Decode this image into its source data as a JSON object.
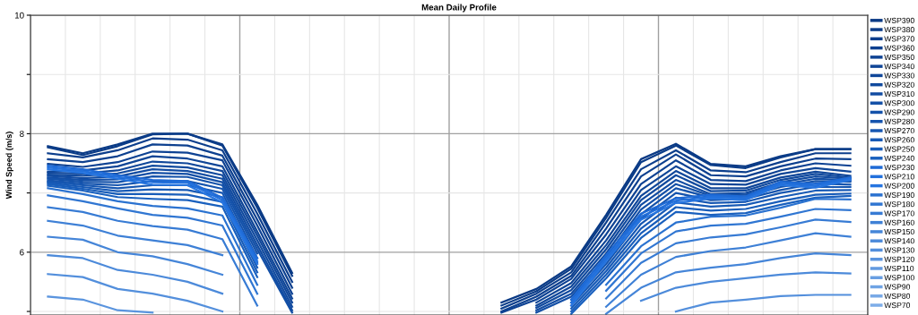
{
  "chart_data": {
    "type": "line",
    "title": "Mean Daily Profile",
    "ylabel": "Wind Speed (m/s)",
    "categories": [
      null,
      null,
      null,
      null,
      null,
      null,
      null,
      null,
      null,
      null,
      null,
      null,
      null,
      null,
      null,
      null,
      null,
      null,
      null,
      null,
      null,
      null,
      null,
      null
    ],
    "ylim": [
      4.94,
      10
    ],
    "yticks": [
      {
        "value": 5,
        "label": null
      },
      6,
      {
        "value": 7,
        "label": null
      },
      8,
      {
        "value": 9,
        "label": null
      },
      10
    ],
    "tick_labels": "y",
    "grid": true,
    "legend": "right",
    "marker": "none",
    "line_style": "solid",
    "series": [
      {
        "name": "WSP390",
        "color": "#0a3a85",
        "values": [
          7.79,
          7.67,
          7.82,
          8.0,
          8.0,
          7.82,
          6.8,
          5.65,
          null,
          null,
          null,
          null,
          null,
          5.15,
          5.38,
          5.76,
          6.63,
          7.57,
          7.83,
          7.49,
          7.45,
          7.62,
          7.74,
          7.74
        ]
      },
      {
        "name": "WSP380",
        "color": "#0b3c88",
        "values": [
          7.77,
          7.64,
          7.79,
          7.99,
          8.0,
          7.8,
          6.75,
          5.6,
          null,
          null,
          null,
          null,
          null,
          5.1,
          5.34,
          5.72,
          6.58,
          7.52,
          7.8,
          7.47,
          7.42,
          7.6,
          7.74,
          7.74
        ]
      },
      {
        "name": "WSP370",
        "color": "#0c3e8c",
        "values": [
          7.67,
          7.6,
          7.72,
          7.92,
          7.9,
          7.72,
          6.65,
          5.5,
          null,
          null,
          null,
          null,
          null,
          5.05,
          5.3,
          5.66,
          6.5,
          7.4,
          7.72,
          7.38,
          7.35,
          7.52,
          7.67,
          7.67
        ]
      },
      {
        "name": "WSP360",
        "color": "#0d408f",
        "values": [
          7.57,
          7.52,
          7.62,
          7.82,
          7.8,
          7.63,
          6.55,
          5.4,
          null,
          null,
          null,
          null,
          null,
          5.0,
          5.25,
          5.6,
          6.4,
          7.28,
          7.65,
          7.3,
          7.28,
          7.45,
          7.58,
          7.57
        ]
      },
      {
        "name": "WSP350",
        "color": "#0e4293",
        "values": [
          7.49,
          7.44,
          7.52,
          7.7,
          7.68,
          7.55,
          6.45,
          5.3,
          null,
          null,
          null,
          null,
          null,
          4.98,
          5.2,
          5.55,
          6.3,
          7.15,
          7.55,
          7.22,
          7.2,
          7.38,
          7.5,
          7.46
        ]
      },
      {
        "name": "WSP340",
        "color": "#0f4596",
        "values": [
          7.36,
          7.38,
          7.45,
          7.62,
          7.58,
          7.45,
          6.35,
          5.22,
          null,
          null,
          null,
          null,
          null,
          null,
          5.15,
          5.48,
          6.2,
          7.05,
          7.45,
          7.15,
          7.14,
          7.32,
          7.42,
          7.36
        ]
      },
      {
        "name": "WSP330",
        "color": "#10479a",
        "values": [
          7.34,
          7.33,
          7.38,
          7.53,
          7.5,
          7.37,
          6.28,
          5.15,
          null,
          null,
          null,
          null,
          null,
          null,
          5.1,
          5.42,
          6.12,
          6.95,
          7.37,
          7.08,
          7.08,
          7.26,
          7.36,
          7.29
        ]
      },
      {
        "name": "WSP320",
        "color": "#114a9e",
        "values": [
          7.31,
          7.29,
          7.33,
          7.46,
          7.43,
          7.3,
          6.2,
          5.08,
          null,
          null,
          null,
          null,
          null,
          null,
          5.06,
          5.36,
          6.05,
          6.88,
          7.3,
          7.03,
          7.04,
          7.22,
          7.32,
          7.26
        ]
      },
      {
        "name": "WSP310",
        "color": "#124ca2",
        "values": [
          7.29,
          7.25,
          7.28,
          7.4,
          7.37,
          7.24,
          6.12,
          5.02,
          null,
          null,
          null,
          null,
          null,
          null,
          5.02,
          5.3,
          5.98,
          6.8,
          7.22,
          6.98,
          7.0,
          7.18,
          7.28,
          7.24
        ]
      },
      {
        "name": "WSP300",
        "color": "#134fa6",
        "values": [
          7.26,
          7.22,
          7.23,
          7.34,
          7.32,
          7.18,
          6.05,
          4.98,
          null,
          null,
          null,
          null,
          null,
          null,
          4.98,
          5.25,
          5.92,
          6.72,
          7.15,
          6.95,
          6.97,
          7.14,
          7.24,
          7.21
        ]
      },
      {
        "name": "WSP290",
        "color": "#1452aa",
        "values": [
          7.24,
          7.19,
          7.18,
          7.28,
          7.27,
          7.13,
          5.98,
          null,
          null,
          null,
          null,
          null,
          null,
          null,
          null,
          5.2,
          5.86,
          6.64,
          7.08,
          6.92,
          6.94,
          7.1,
          7.2,
          7.19
        ]
      },
      {
        "name": "WSP280",
        "color": "#1554ae",
        "values": [
          7.21,
          7.16,
          7.13,
          7.2,
          7.2,
          7.07,
          5.9,
          null,
          null,
          null,
          null,
          null,
          null,
          null,
          null,
          5.15,
          5.8,
          6.56,
          7.0,
          6.88,
          6.9,
          7.05,
          7.16,
          7.14
        ]
      },
      {
        "name": "WSP270",
        "color": "#1657b2",
        "values": [
          7.19,
          7.13,
          7.08,
          7.13,
          7.13,
          7.0,
          5.82,
          null,
          null,
          null,
          null,
          null,
          null,
          null,
          null,
          5.1,
          5.74,
          6.48,
          6.92,
          6.83,
          6.85,
          7.0,
          7.1,
          7.1
        ]
      },
      {
        "name": "WSP260",
        "color": "#175ab6",
        "values": [
          7.17,
          7.1,
          7.03,
          7.06,
          7.05,
          6.93,
          5.74,
          null,
          null,
          null,
          null,
          null,
          null,
          null,
          null,
          5.05,
          5.68,
          6.4,
          6.84,
          6.77,
          6.8,
          6.93,
          7.04,
          7.05
        ]
      },
      {
        "name": "WSP250",
        "color": "#185dba",
        "values": [
          7.15,
          7.07,
          6.98,
          6.98,
          6.97,
          6.85,
          5.66,
          null,
          null,
          null,
          null,
          null,
          null,
          null,
          null,
          5.0,
          5.62,
          6.32,
          6.76,
          6.7,
          6.73,
          6.86,
          6.97,
          6.99
        ]
      },
      {
        "name": "WSP240",
        "color": "#1960be",
        "values": [
          7.12,
          7.04,
          6.93,
          6.9,
          6.88,
          6.77,
          5.58,
          null,
          null,
          null,
          null,
          null,
          null,
          null,
          null,
          4.96,
          5.56,
          6.24,
          6.68,
          6.63,
          6.66,
          6.8,
          6.92,
          6.95
        ]
      },
      {
        "name": "WSP230",
        "color": "#1e6ad6",
        "values": [
          7.46,
          7.4,
          7.3,
          7.22,
          7.2,
          6.92,
          5.9,
          null,
          null,
          null,
          null,
          null,
          null,
          null,
          null,
          5.2,
          5.95,
          6.65,
          6.91,
          6.97,
          6.94,
          7.19,
          7.15,
          7.26
        ]
      },
      {
        "name": "WSP210",
        "color": "#2270dc",
        "values": [
          7.43,
          7.37,
          7.27,
          7.18,
          7.17,
          6.88,
          5.85,
          null,
          null,
          null,
          null,
          null,
          null,
          null,
          null,
          5.15,
          5.9,
          6.6,
          6.87,
          6.94,
          6.91,
          7.16,
          7.12,
          7.24
        ]
      },
      {
        "name": "WSP200",
        "color": "#2675e0",
        "values": [
          7.4,
          7.34,
          7.24,
          7.14,
          7.13,
          6.84,
          5.8,
          null,
          null,
          null,
          null,
          null,
          null,
          null,
          null,
          5.1,
          5.85,
          6.55,
          6.83,
          6.91,
          6.88,
          7.13,
          7.09,
          7.22
        ]
      },
      {
        "name": "WSP190",
        "color": "#2a72d0",
        "values": [
          7.08,
          6.98,
          6.86,
          6.78,
          6.74,
          6.62,
          5.45,
          null,
          null,
          null,
          null,
          null,
          null,
          null,
          null,
          null,
          5.45,
          6.1,
          6.5,
          6.6,
          6.62,
          6.75,
          6.9,
          6.89
        ]
      },
      {
        "name": "WSP180",
        "color": "#3076d2",
        "values": [
          6.96,
          6.86,
          6.74,
          6.63,
          6.58,
          6.45,
          5.3,
          null,
          null,
          null,
          null,
          null,
          null,
          null,
          null,
          null,
          5.35,
          5.98,
          6.35,
          6.45,
          6.48,
          6.6,
          6.73,
          6.71
        ]
      },
      {
        "name": "WSP170",
        "color": "#377bd4",
        "values": [
          6.76,
          6.68,
          6.53,
          6.44,
          6.38,
          6.22,
          5.1,
          null,
          null,
          null,
          null,
          null,
          null,
          null,
          null,
          null,
          5.22,
          5.82,
          6.15,
          6.25,
          6.3,
          6.42,
          6.55,
          6.51
        ]
      },
      {
        "name": "WSP160",
        "color": "#3e80d6",
        "values": [
          6.53,
          6.45,
          6.28,
          6.2,
          6.12,
          5.95,
          null,
          null,
          null,
          null,
          null,
          null,
          null,
          null,
          null,
          null,
          5.08,
          5.62,
          5.92,
          6.02,
          6.08,
          6.2,
          6.32,
          6.26
        ]
      },
      {
        "name": "WSP150",
        "color": "#4585d8",
        "values": [
          6.26,
          6.21,
          6.0,
          5.93,
          5.8,
          5.62,
          null,
          null,
          null,
          null,
          null,
          null,
          null,
          null,
          null,
          null,
          4.96,
          5.4,
          5.66,
          5.74,
          5.8,
          5.9,
          5.98,
          5.95
        ]
      },
      {
        "name": "WSP140",
        "color": "#4c8ada",
        "values": [
          5.95,
          5.9,
          5.7,
          5.62,
          5.5,
          5.3,
          null,
          null,
          null,
          null,
          null,
          null,
          null,
          null,
          null,
          null,
          null,
          5.18,
          5.4,
          5.5,
          5.56,
          5.62,
          5.66,
          5.64
        ]
      },
      {
        "name": "WSP130",
        "color": "#538fdc",
        "values": [
          5.63,
          5.58,
          5.38,
          5.3,
          5.18,
          5.0,
          null,
          null,
          null,
          null,
          null,
          null,
          null,
          null,
          null,
          null,
          null,
          null,
          5.0,
          5.15,
          5.2,
          5.26,
          5.28,
          5.28
        ]
      },
      {
        "name": "WSP120",
        "color": "#5a94de",
        "values": [
          5.25,
          5.2,
          5.02,
          4.98,
          null,
          null,
          null,
          null,
          null,
          null,
          null,
          null,
          null,
          null,
          null,
          null,
          null,
          null,
          null,
          null,
          null,
          null,
          null,
          null
        ]
      },
      {
        "name": "WSP110",
        "color": "#6199e0",
        "values": [
          null,
          null,
          null,
          null,
          null,
          null,
          null,
          null,
          null,
          null,
          null,
          null,
          null,
          null,
          null,
          null,
          null,
          null,
          null,
          null,
          null,
          null,
          null,
          null
        ]
      },
      {
        "name": "WSP100",
        "color": "#689ee2",
        "values": [
          null,
          null,
          null,
          null,
          null,
          null,
          null,
          null,
          null,
          null,
          null,
          null,
          null,
          null,
          null,
          null,
          null,
          null,
          null,
          null,
          null,
          null,
          null,
          null
        ]
      },
      {
        "name": "WSP90",
        "color": "#6fa3e4",
        "values": [
          null,
          null,
          null,
          null,
          null,
          null,
          null,
          null,
          null,
          null,
          null,
          null,
          null,
          null,
          null,
          null,
          null,
          null,
          null,
          null,
          null,
          null,
          null,
          null
        ]
      },
      {
        "name": "WSP80",
        "color": "#76a8e6",
        "values": [
          null,
          null,
          null,
          null,
          null,
          null,
          null,
          null,
          null,
          null,
          null,
          null,
          null,
          null,
          null,
          null,
          null,
          null,
          null,
          null,
          null,
          null,
          null,
          null
        ]
      },
      {
        "name": "WSP70",
        "color": "#7dade8",
        "values": [
          null,
          null,
          null,
          null,
          null,
          null,
          null,
          null,
          null,
          null,
          null,
          null,
          null,
          null,
          null,
          null,
          null,
          null,
          null,
          null,
          null,
          null,
          null,
          null
        ]
      }
    ]
  }
}
